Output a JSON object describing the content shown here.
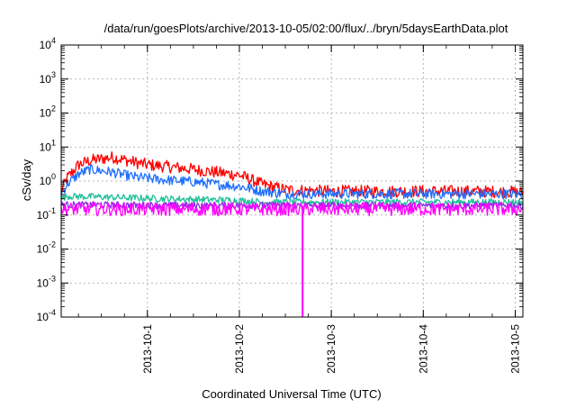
{
  "chart_data": {
    "type": "line",
    "title": "/data/run/goesPlots/archive/2013-10-05/02:00/flux/../bryn/5daysEarthData.plot",
    "xlabel": "Coordinated Universal Time (UTC)",
    "ylabel": "cSv/day",
    "yscale": "log",
    "ylim": [
      0.0001,
      10000
    ],
    "xlim": [
      "2013-09-30T01:30",
      "2013-10-05T02:00"
    ],
    "grid": true,
    "legend": "none",
    "y_ticks": [
      {
        "base": "10",
        "exp": "-4",
        "value": 0.0001
      },
      {
        "base": "10",
        "exp": "-3",
        "value": 0.001
      },
      {
        "base": "10",
        "exp": "-2",
        "value": 0.01
      },
      {
        "base": "10",
        "exp": "-1",
        "value": 0.1
      },
      {
        "base": "10",
        "exp": "0",
        "value": 1
      },
      {
        "base": "10",
        "exp": "1",
        "value": 10
      },
      {
        "base": "10",
        "exp": "2",
        "value": 100
      },
      {
        "base": "10",
        "exp": "3",
        "value": 1000
      },
      {
        "base": "10",
        "exp": "4",
        "value": 10000
      }
    ],
    "x_ticks": [
      {
        "label": "2013-10-1",
        "date": "2013-10-01T00:00"
      },
      {
        "label": "2013-10-2",
        "date": "2013-10-02T00:00"
      },
      {
        "label": "2013-10-3",
        "date": "2013-10-03T00:00"
      },
      {
        "label": "2013-10-4",
        "date": "2013-10-04T00:00"
      },
      {
        "label": "2013-10-5",
        "date": "2013-10-05T00:00"
      }
    ],
    "series": [
      {
        "color": "#ff0000",
        "noise": 0.18,
        "x": [
          "2013-09-30T01:30",
          "2013-09-30T03:00",
          "2013-09-30T06:00",
          "2013-09-30T09:00",
          "2013-09-30T12:00",
          "2013-09-30T15:00",
          "2013-09-30T18:00",
          "2013-09-30T21:00",
          "2013-10-01T00:00",
          "2013-10-01T06:00",
          "2013-10-01T12:00",
          "2013-10-01T18:00",
          "2013-10-02T00:00",
          "2013-10-02T06:00",
          "2013-10-02T12:00",
          "2013-10-03T00:00",
          "2013-10-03T12:00",
          "2013-10-04T00:00",
          "2013-10-04T12:00",
          "2013-10-05T00:00",
          "2013-10-05T02:00"
        ],
        "y": [
          0.5,
          1.2,
          3.0,
          4.0,
          4.5,
          5.0,
          4.2,
          3.5,
          3.0,
          2.6,
          2.2,
          1.8,
          1.5,
          0.8,
          0.55,
          0.5,
          0.5,
          0.5,
          0.5,
          0.48,
          0.45
        ]
      },
      {
        "color": "#1f6fff",
        "noise": 0.15,
        "x": [
          "2013-09-30T01:30",
          "2013-09-30T03:00",
          "2013-09-30T06:00",
          "2013-09-30T09:00",
          "2013-09-30T12:00",
          "2013-09-30T15:00",
          "2013-09-30T18:00",
          "2013-09-30T21:00",
          "2013-10-01T00:00",
          "2013-10-01T06:00",
          "2013-10-01T12:00",
          "2013-10-01T18:00",
          "2013-10-02T00:00",
          "2013-10-02T06:00",
          "2013-10-02T12:00",
          "2013-10-03T00:00",
          "2013-10-03T12:00",
          "2013-10-04T00:00",
          "2013-10-04T12:00",
          "2013-10-05T00:00",
          "2013-10-05T02:00"
        ],
        "y": [
          0.4,
          0.8,
          1.6,
          2.2,
          2.0,
          1.8,
          1.5,
          1.3,
          1.2,
          1.05,
          0.95,
          0.8,
          0.7,
          0.5,
          0.42,
          0.42,
          0.42,
          0.42,
          0.42,
          0.42,
          0.4
        ]
      },
      {
        "color": "#20c09a",
        "noise": 0.1,
        "x": [
          "2013-09-30T01:30",
          "2013-09-30T03:00",
          "2013-09-30T12:00",
          "2013-10-01T00:00",
          "2013-10-01T12:00",
          "2013-10-02T00:00",
          "2013-10-02T06:00",
          "2013-10-03T00:00",
          "2013-10-04T00:00",
          "2013-10-05T02:00"
        ],
        "y": [
          0.3,
          0.36,
          0.34,
          0.31,
          0.29,
          0.27,
          0.24,
          0.24,
          0.24,
          0.24
        ]
      },
      {
        "color": "#8a2be2",
        "noise": 0.1,
        "x": [
          "2013-09-30T01:30",
          "2013-10-02T00:00",
          "2013-10-05T02:00"
        ],
        "y": [
          0.2,
          0.19,
          0.19
        ]
      },
      {
        "color": "#ff00ff",
        "noise": 0.2,
        "x": [
          "2013-09-30T01:30",
          "2013-10-02T00:00",
          "2013-10-05T02:00"
        ],
        "y": [
          0.15,
          0.15,
          0.15
        ]
      }
    ],
    "spike": {
      "color": "#ff00ff",
      "x": "2013-10-02T16:30",
      "y_from": 0.15,
      "y_to": 0.0001
    }
  }
}
